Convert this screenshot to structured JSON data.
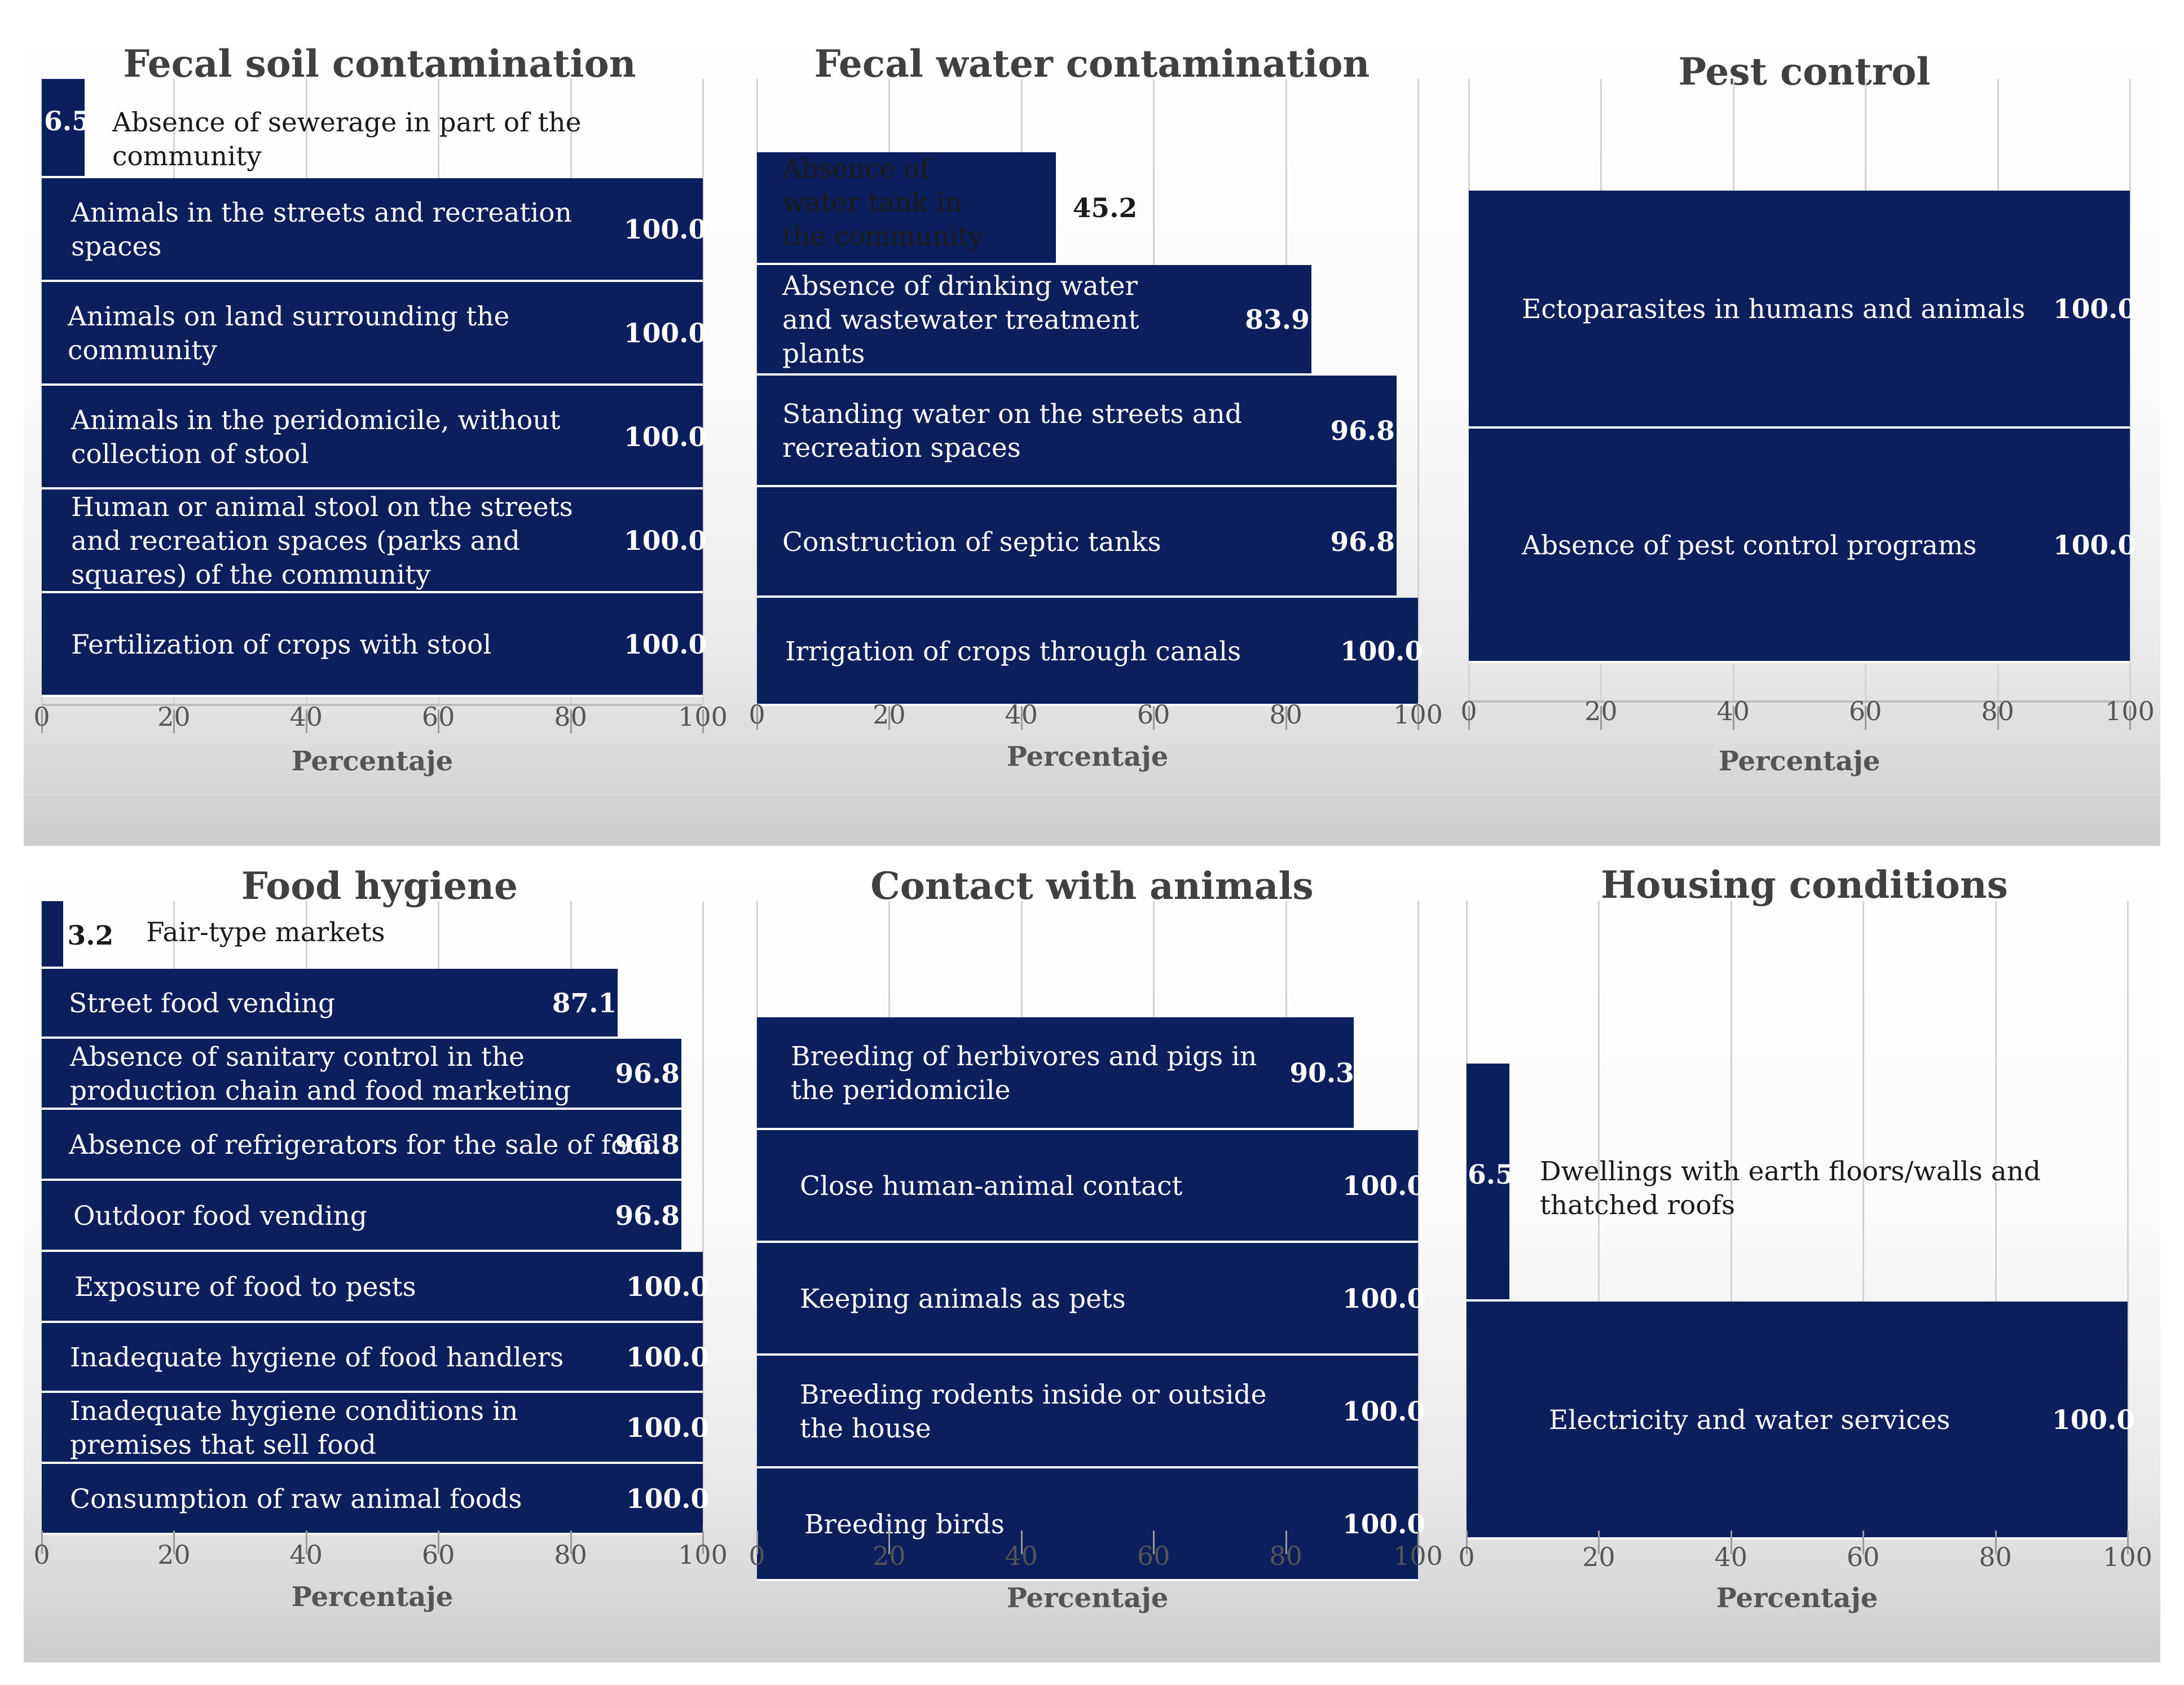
{
  "chart_data": [
    {
      "type": "bar",
      "orientation": "horizontal",
      "title": "Fecal soil contamination",
      "xlabel": "Percentaje",
      "xlim": [
        0,
        100
      ],
      "xticks": [
        "0",
        "20",
        "40",
        "60",
        "80",
        "100"
      ],
      "categories": [
        "Absence of sewerage in part of the community",
        "Animals in the streets and recreation spaces",
        "Animals on land surrounding the community",
        "Animals in the peridomicile, without collection of stool",
        "Human or animal stool on the streets and recreation spaces (parks and squares) of the community",
        "Fertilization of crops with stool"
      ],
      "values": [
        6.5,
        100.0,
        100.0,
        100.0,
        100.0,
        100.0
      ],
      "value_labels": [
        "6.5",
        "100.0",
        "100.0",
        "100.0",
        "100.0",
        "100.0"
      ],
      "bar_color": "#0b1f5c"
    },
    {
      "type": "bar",
      "orientation": "horizontal",
      "title": "Fecal water contamination",
      "xlabel": "Percentaje",
      "xlim": [
        0,
        100
      ],
      "xticks": [
        "0",
        "20",
        "40",
        "60",
        "80",
        "100"
      ],
      "categories": [
        "Absence of water tank in the community",
        "Absence of drinking water and wastewater treatment plants",
        "Standing water on the streets and recreation spaces",
        "Construction of septic tanks",
        "Irrigation of crops through canals"
      ],
      "values": [
        45.2,
        83.9,
        96.8,
        96.8,
        100.0
      ],
      "value_labels": [
        "45.2",
        "83.9",
        "96.8",
        "96.8",
        "100.0"
      ],
      "bar_color": "#0b1f5c"
    },
    {
      "type": "bar",
      "orientation": "horizontal",
      "title": "Pest control",
      "xlabel": "Percentaje",
      "xlim": [
        0,
        100
      ],
      "xticks": [
        "0",
        "20",
        "40",
        "60",
        "80",
        "100"
      ],
      "categories": [
        "Ectoparasites in humans and animals",
        "Absence of pest control programs"
      ],
      "values": [
        100.0,
        100.0
      ],
      "value_labels": [
        "100.0",
        "100.0"
      ],
      "bar_color": "#0b1f5c"
    },
    {
      "type": "bar",
      "orientation": "horizontal",
      "title": "Food hygiene",
      "xlabel": "Percentaje",
      "xlim": [
        0,
        100
      ],
      "xticks": [
        "0",
        "20",
        "40",
        "60",
        "80",
        "100"
      ],
      "categories": [
        "Fair-type markets",
        "Street food vending",
        "Absence of sanitary control in the production chain and food marketing",
        "Absence of refrigerators for the sale of food",
        "Outdoor food vending",
        "Exposure of food to pests",
        "Inadequate hygiene of food handlers",
        "Inadequate hygiene conditions in premises that sell food",
        "Consumption of raw animal foods"
      ],
      "values": [
        3.2,
        87.1,
        96.8,
        96.8,
        96.8,
        100.0,
        100.0,
        100.0,
        100.0
      ],
      "value_labels": [
        "3.2",
        "87.1",
        "96.8",
        "96.8",
        "96.8",
        "100.0",
        "100.0",
        "100.0",
        "100.0"
      ],
      "bar_color": "#0b1f5c"
    },
    {
      "type": "bar",
      "orientation": "horizontal",
      "title": "Contact with animals",
      "xlabel": "Percentaje",
      "xlim": [
        0,
        100
      ],
      "xticks": [
        "0",
        "20",
        "40",
        "60",
        "80",
        "100"
      ],
      "categories": [
        "Breeding of herbivores and pigs in the peridomicile",
        "Close human-animal contact",
        "Keeping animals as pets",
        "Breeding rodents inside or outside the house",
        "Breeding birds"
      ],
      "values": [
        90.3,
        100.0,
        100.0,
        100.0,
        100.0
      ],
      "value_labels": [
        "90.3",
        "100.0",
        "100.0",
        "100.0",
        "100.0"
      ],
      "bar_color": "#0b1f5c"
    },
    {
      "type": "bar",
      "orientation": "horizontal",
      "title": "Housing conditions",
      "xlabel": "Percentaje",
      "xlim": [
        0,
        100
      ],
      "xticks": [
        "0",
        "20",
        "40",
        "60",
        "80",
        "100"
      ],
      "categories": [
        "Dwellings with earth floors/walls and thatched roofs",
        "Electricity and water services"
      ],
      "values": [
        6.5,
        100.0
      ],
      "value_labels": [
        "6.5",
        "100.0"
      ],
      "bar_color": "#0b1f5c"
    }
  ]
}
